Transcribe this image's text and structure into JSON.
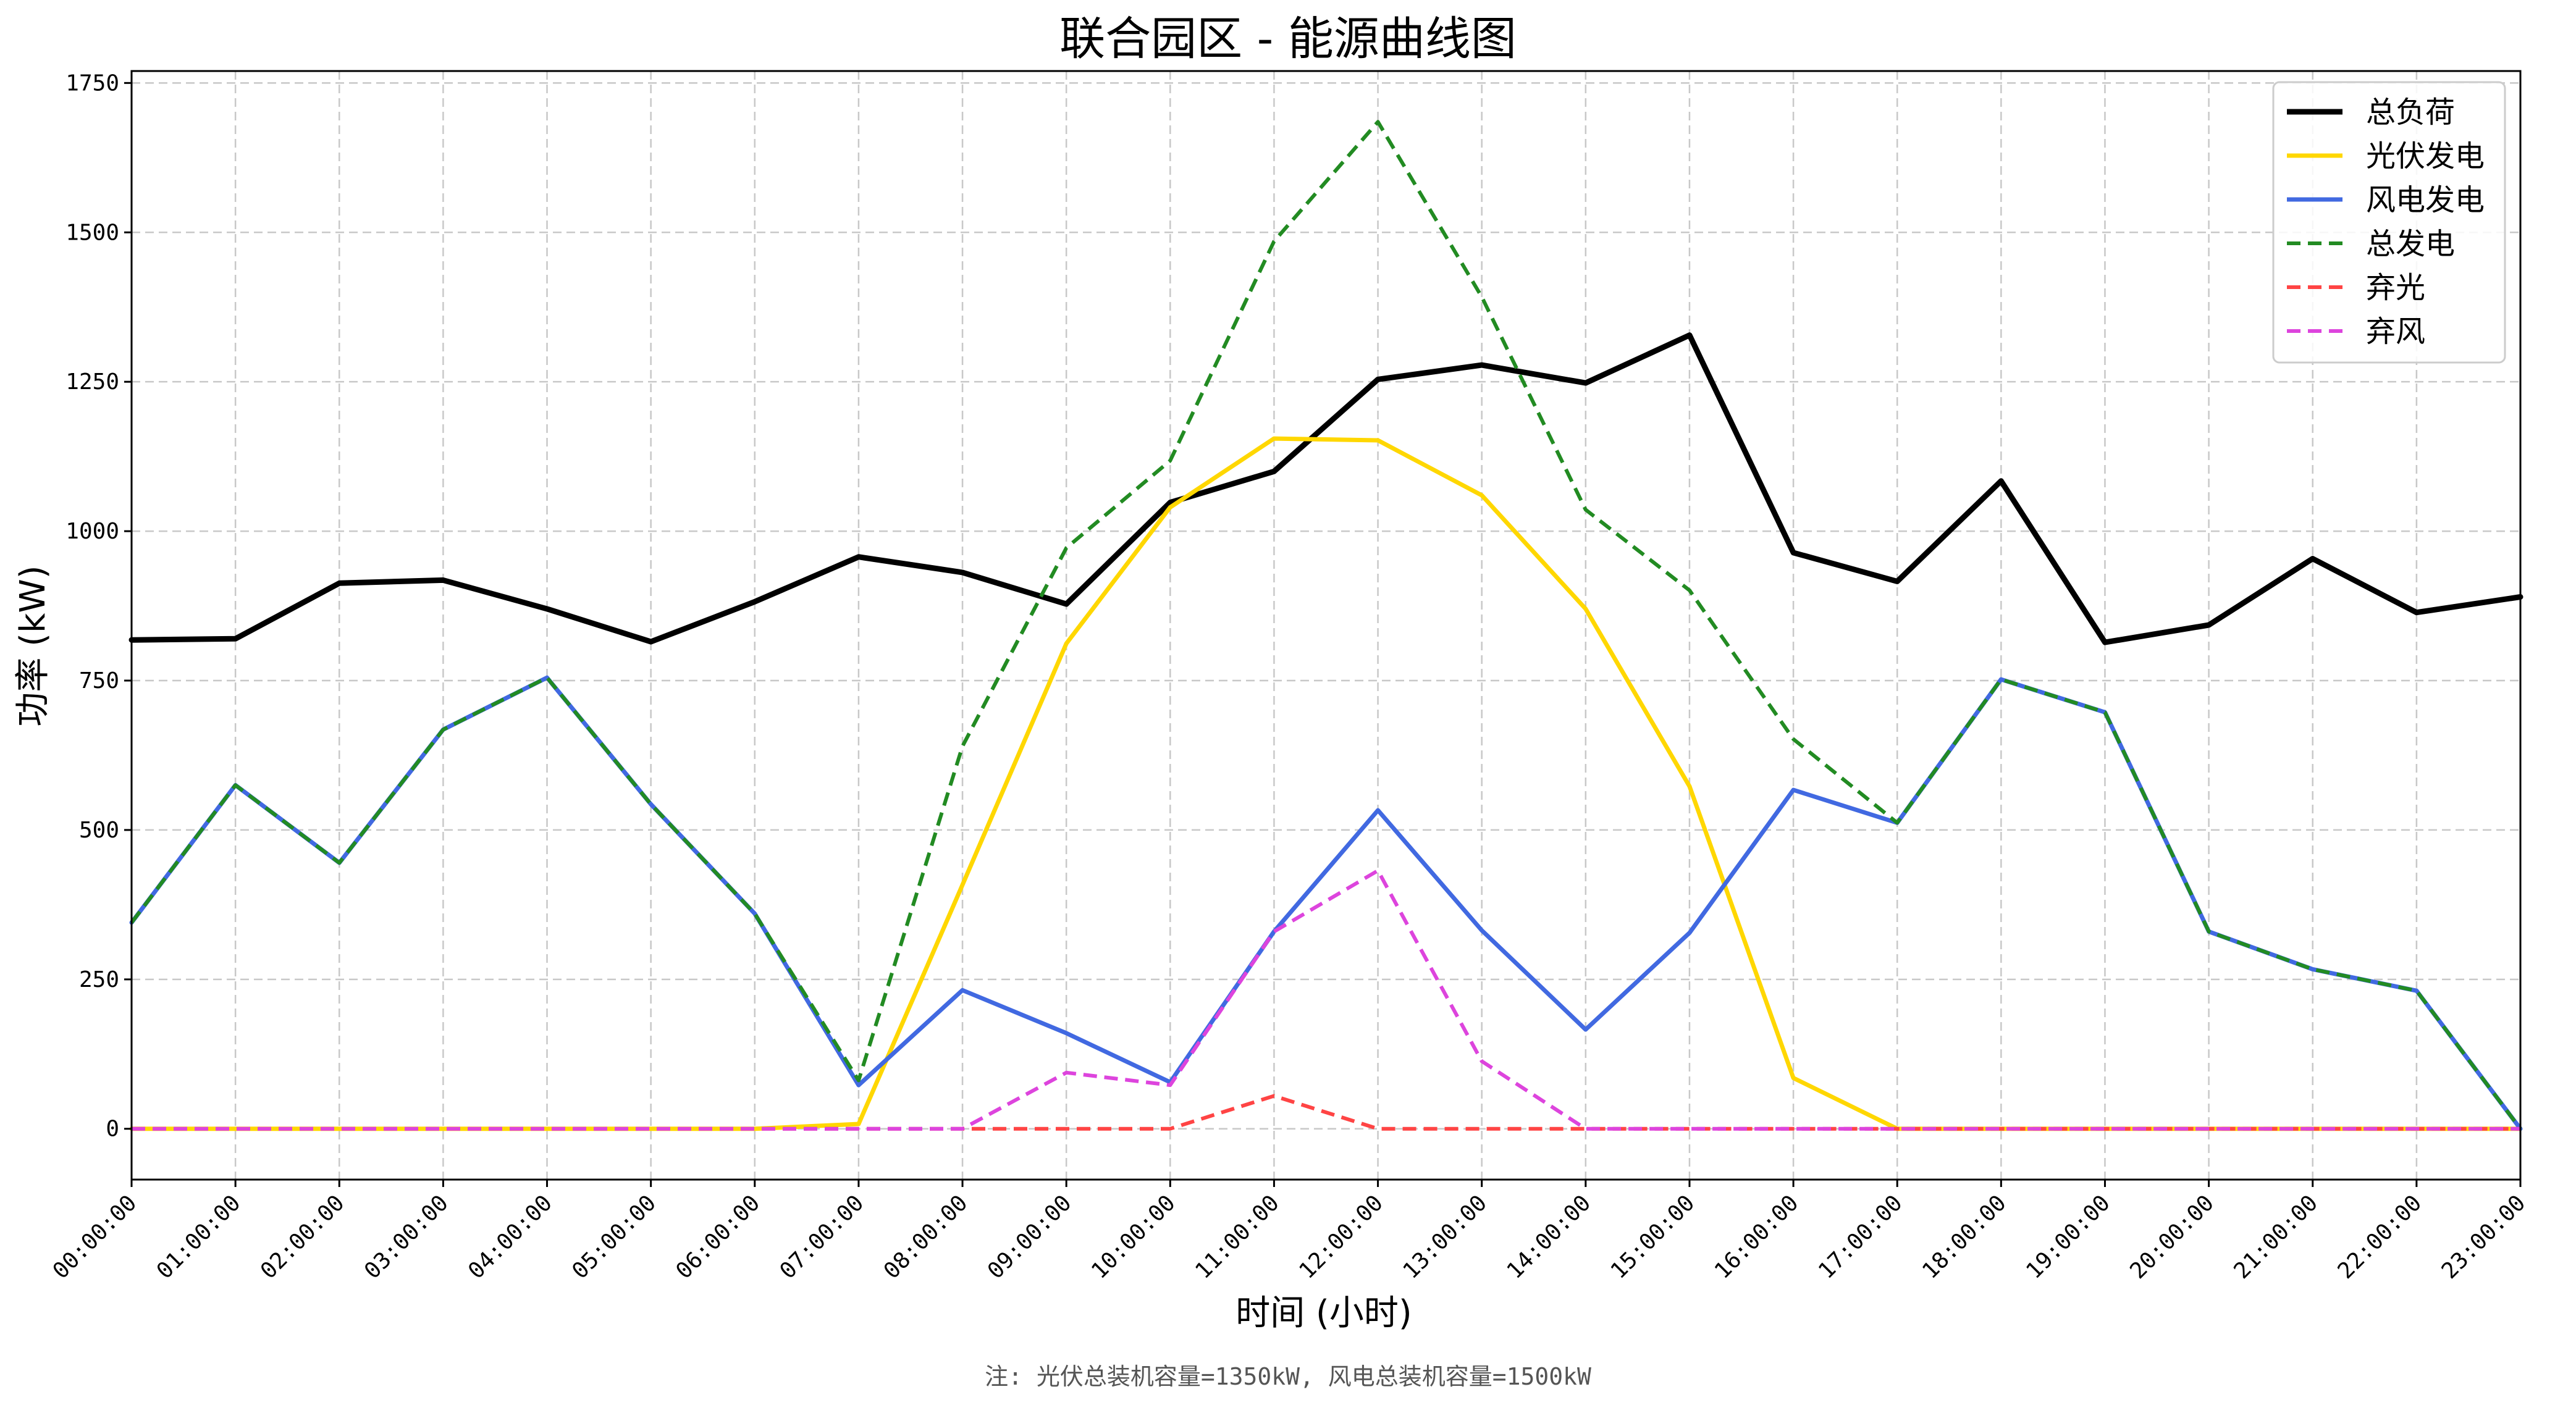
{
  "chart_data": {
    "type": "line",
    "title": "联合园区 - 能源曲线图",
    "xlabel": "时间 (小时)",
    "ylabel": "功率 (kW)",
    "note": "注: 光伏总装机容量=1350kW, 风电总装机容量=1500kW",
    "categories": [
      "00:00:00",
      "01:00:00",
      "02:00:00",
      "03:00:00",
      "04:00:00",
      "05:00:00",
      "06:00:00",
      "07:00:00",
      "08:00:00",
      "09:00:00",
      "10:00:00",
      "11:00:00",
      "12:00:00",
      "13:00:00",
      "14:00:00",
      "15:00:00",
      "16:00:00",
      "17:00:00",
      "18:00:00",
      "19:00:00",
      "20:00:00",
      "21:00:00",
      "22:00:00",
      "23:00:00"
    ],
    "yticks": [
      0,
      250,
      500,
      750,
      1000,
      1250,
      1500,
      1750
    ],
    "ylim": [
      -85,
      1770
    ],
    "grid": true,
    "legend_position": "top-right",
    "series": [
      {
        "name": "总负荷",
        "color": "#000000",
        "dash": "solid",
        "width": 9,
        "values": [
          818,
          820,
          913,
          918,
          870,
          815,
          882,
          957,
          931,
          878,
          1048,
          1100,
          1254,
          1278,
          1248,
          1328,
          964,
          916,
          1084,
          814,
          843,
          954,
          864,
          890
        ]
      },
      {
        "name": "光伏发电",
        "color": "#FFD700",
        "dash": "solid",
        "width": 7,
        "values": [
          0,
          0,
          0,
          0,
          0,
          0,
          0,
          8,
          408,
          812,
          1040,
          1155,
          1152,
          1060,
          870,
          573,
          85,
          0,
          0,
          0,
          0,
          0,
          0,
          0
        ]
      },
      {
        "name": "风电发电",
        "color": "#4169E1",
        "dash": "solid",
        "width": 7,
        "values": [
          345,
          575,
          445,
          668,
          755,
          543,
          360,
          73,
          232,
          160,
          78,
          330,
          533,
          332,
          166,
          328,
          567,
          512,
          752,
          697,
          330,
          267,
          231,
          0
        ]
      },
      {
        "name": "总发电",
        "color": "#228B22",
        "dash": "dashed",
        "width": 6,
        "values": [
          345,
          575,
          445,
          668,
          755,
          543,
          360,
          81,
          640,
          972,
          1118,
          1485,
          1685,
          1392,
          1036,
          901,
          652,
          512,
          752,
          697,
          330,
          267,
          231,
          0
        ]
      },
      {
        "name": "弃光",
        "color": "#FF4444",
        "dash": "dashed",
        "width": 6,
        "values": [
          0,
          0,
          0,
          0,
          0,
          0,
          0,
          0,
          0,
          0,
          0,
          55,
          0,
          0,
          0,
          0,
          0,
          0,
          0,
          0,
          0,
          0,
          0,
          0
        ]
      },
      {
        "name": "弃风",
        "color": "#DD44DD",
        "dash": "dashed",
        "width": 6,
        "values": [
          0,
          0,
          0,
          0,
          0,
          0,
          0,
          0,
          0,
          94,
          73,
          330,
          432,
          113,
          0,
          0,
          0,
          0,
          0,
          0,
          0,
          0,
          0,
          0
        ]
      }
    ]
  }
}
